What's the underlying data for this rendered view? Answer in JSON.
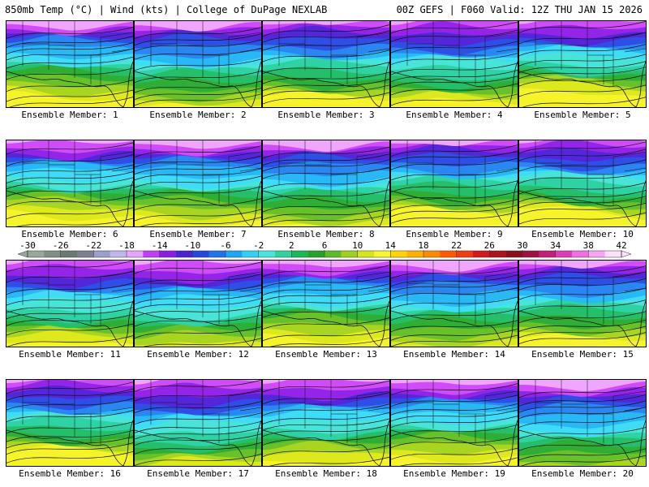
{
  "header": {
    "left": "850mb Temp (°C) | Wind (kts) | College of DuPage NEXLAB",
    "right": "00Z GEFS | F060 Valid: 12Z THU JAN 15 2026"
  },
  "label_prefix": "Ensemble Member: ",
  "members": [
    {
      "number": 1,
      "label": "Ensemble Member: 1",
      "cold_depth": 0.45,
      "cold_west": 0.55
    },
    {
      "number": 2,
      "label": "Ensemble Member: 2",
      "cold_depth": 0.55,
      "cold_west": 0.75
    },
    {
      "number": 3,
      "label": "Ensemble Member: 3",
      "cold_depth": 0.5,
      "cold_west": 0.6
    },
    {
      "number": 4,
      "label": "Ensemble Member: 4",
      "cold_depth": 0.55,
      "cold_west": 0.7
    },
    {
      "number": 5,
      "label": "Ensemble Member: 5",
      "cold_depth": 0.45,
      "cold_west": 0.5
    },
    {
      "number": 6,
      "label": "Ensemble Member: 6",
      "cold_depth": 0.45,
      "cold_west": 0.55
    },
    {
      "number": 7,
      "label": "Ensemble Member: 7",
      "cold_depth": 0.5,
      "cold_west": 0.6
    },
    {
      "number": 8,
      "label": "Ensemble Member: 8",
      "cold_depth": 0.55,
      "cold_west": 0.75
    },
    {
      "number": 9,
      "label": "Ensemble Member: 9",
      "cold_depth": 0.45,
      "cold_west": 0.55
    },
    {
      "number": 10,
      "label": "Ensemble Member: 10",
      "cold_depth": 0.5,
      "cold_west": 0.45
    },
    {
      "number": 11,
      "label": "Ensemble Member: 11",
      "cold_depth": 0.55,
      "cold_west": 0.7
    },
    {
      "number": 12,
      "label": "Ensemble Member: 12",
      "cold_depth": 0.6,
      "cold_west": 0.8
    },
    {
      "number": 13,
      "label": "Ensemble Member: 13",
      "cold_depth": 0.45,
      "cold_west": 0.65
    },
    {
      "number": 14,
      "label": "Ensemble Member: 14",
      "cold_depth": 0.55,
      "cold_west": 0.8
    },
    {
      "number": 15,
      "label": "Ensemble Member: 15",
      "cold_depth": 0.5,
      "cold_west": 0.65
    },
    {
      "number": 16,
      "label": "Ensemble Member: 16",
      "cold_depth": 0.45,
      "cold_west": 0.6
    },
    {
      "number": 17,
      "label": "Ensemble Member: 17",
      "cold_depth": 0.6,
      "cold_west": 0.85
    },
    {
      "number": 18,
      "label": "Ensemble Member: 18",
      "cold_depth": 0.5,
      "cold_west": 0.75
    },
    {
      "number": 19,
      "label": "Ensemble Member: 19",
      "cold_depth": 0.45,
      "cold_west": 0.7
    },
    {
      "number": 20,
      "label": "Ensemble Member: 20",
      "cold_depth": 0.65,
      "cold_west": 0.8
    }
  ],
  "colorbar": {
    "tick_labels": [
      "-30",
      "-26",
      "-22",
      "-18",
      "-14",
      "-10",
      "-6",
      "-2",
      "2",
      "6",
      "10",
      "14",
      "18",
      "22",
      "26",
      "30",
      "34",
      "38",
      "42"
    ],
    "colors": [
      "#9aa89a",
      "#7f8f85",
      "#6b7a72",
      "#7e7f90",
      "#9aa0c8",
      "#c0b6ec",
      "#e2a6ff",
      "#c23cfa",
      "#8a1de8",
      "#4b23d6",
      "#2546e3",
      "#1f74ee",
      "#1aa6f4",
      "#2fd2f7",
      "#46e6e0",
      "#2ed39e",
      "#19b85a",
      "#27a32a",
      "#5ebb26",
      "#9fd21b",
      "#d7e617",
      "#f8f52d",
      "#ffd400",
      "#ffb000",
      "#ff8a00",
      "#ff5a00",
      "#f23a14",
      "#d6181c",
      "#b0121e",
      "#8d0f1c",
      "#a01040",
      "#c41e78",
      "#e03ab4",
      "#f06ee0",
      "#f9a6f2",
      "#fde0fb"
    ]
  },
  "temperature_palette": {
    "cold": [
      "#f0a6ff",
      "#d04cf8",
      "#9424e8",
      "#5426da",
      "#2e4ee6",
      "#2a86f0",
      "#28b8f6",
      "#3fdcf7"
    ],
    "warm": [
      "#49e4d8",
      "#2fd2a3",
      "#24bf68",
      "#2fae36",
      "#69c12a",
      "#a7d522",
      "#dde81d",
      "#f5f32a"
    ]
  },
  "map_line_color": "#111111"
}
